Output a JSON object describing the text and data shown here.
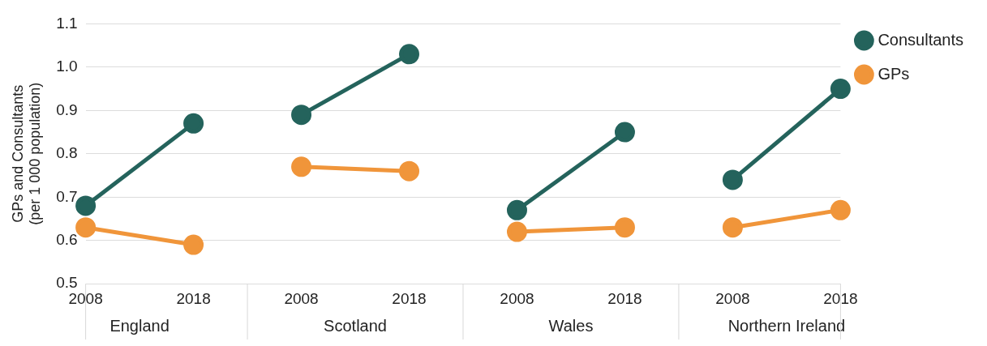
{
  "chart_data": {
    "type": "line",
    "ylabel": "GPs and Consultants\n(per 1 000 population)",
    "categories": [
      "2008",
      "2018",
      "2008",
      "2018",
      "2008",
      "2018",
      "2008",
      "2018"
    ],
    "annotations": [
      "England",
      "Scotland",
      "Wales",
      "Northern Ireland"
    ],
    "series": [
      {
        "name": "Consultants",
        "color": "#24635c",
        "values": [
          0.68,
          0.87,
          0.89,
          1.03,
          0.67,
          0.85,
          0.74,
          0.95
        ]
      },
      {
        "name": "GPs",
        "color": "#f0953a",
        "values": [
          0.63,
          0.59,
          0.77,
          0.76,
          0.62,
          0.63,
          0.63,
          0.67
        ]
      }
    ],
    "ylim": [
      0.5,
      1.1
    ],
    "yticks": [
      {
        "value": 0.5,
        "label": "0.5"
      },
      {
        "value": 0.6,
        "label": "0.6"
      },
      {
        "value": 0.7,
        "label": "0.7"
      },
      {
        "value": 0.8,
        "label": "0.8"
      },
      {
        "value": 0.9,
        "label": "0.9"
      },
      {
        "value": 1.0,
        "label": "1.0"
      },
      {
        "value": 1.1,
        "label": "1.1"
      }
    ],
    "grid": "y",
    "legend": "top right",
    "marker": "circle",
    "line_style": "solid"
  }
}
